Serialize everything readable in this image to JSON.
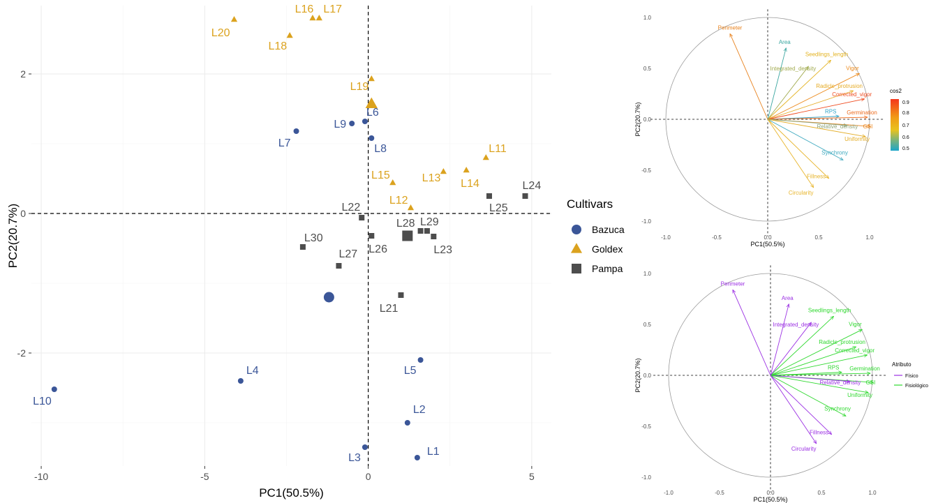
{
  "chart_data": [
    {
      "type": "scatter",
      "title": "",
      "xlabel": "PC1(50.5%)",
      "ylabel": "PC2(20.7%)",
      "xlim": [
        -10.3,
        5.6
      ],
      "ylim": [
        -3.62,
        2.98
      ],
      "xticks": [
        -10,
        -5,
        0,
        5
      ],
      "yticks": [
        -2,
        0,
        2
      ],
      "grid": true,
      "legend": {
        "title": "Cultivars",
        "position": "right"
      },
      "series": [
        {
          "name": "Bazuca",
          "shape": "circle",
          "color": "#3b5698",
          "points": [
            {
              "label": "L1",
              "x": 1.5,
              "y": -3.5
            },
            {
              "label": "L2",
              "x": 1.2,
              "y": -3.0
            },
            {
              "label": "L3",
              "x": -0.1,
              "y": -3.35
            },
            {
              "label": "L4",
              "x": -3.9,
              "y": -2.4
            },
            {
              "label": "L5",
              "x": 1.6,
              "y": -2.1
            },
            {
              "label": "L6",
              "x": -0.1,
              "y": 1.32
            },
            {
              "label": "L7",
              "x": -2.2,
              "y": 1.18
            },
            {
              "label": "L8",
              "x": 0.1,
              "y": 1.08
            },
            {
              "label": "L9",
              "x": -0.5,
              "y": 1.29
            },
            {
              "label": "L10",
              "x": -9.6,
              "y": -2.52
            }
          ],
          "centroid": {
            "x": -1.2,
            "y": -1.2
          }
        },
        {
          "name": "Goldex",
          "shape": "triangle",
          "color": "#dba21e",
          "points": [
            {
              "label": "L11",
              "x": 3.6,
              "y": 0.8
            },
            {
              "label": "L12",
              "x": 1.3,
              "y": 0.08
            },
            {
              "label": "L13",
              "x": 2.3,
              "y": 0.6
            },
            {
              "label": "L14",
              "x": 3.0,
              "y": 0.62
            },
            {
              "label": "L15",
              "x": 0.75,
              "y": 0.44
            },
            {
              "label": "L16",
              "x": -1.7,
              "y": 2.8
            },
            {
              "label": "L17",
              "x": -1.5,
              "y": 2.8
            },
            {
              "label": "L18",
              "x": -2.4,
              "y": 2.55
            },
            {
              "label": "L19",
              "x": 0.1,
              "y": 1.93
            },
            {
              "label": "L20",
              "x": -4.1,
              "y": 2.78
            }
          ],
          "centroid": {
            "x": 0.1,
            "y": 1.57
          }
        },
        {
          "name": "Pampa",
          "shape": "square",
          "color": "#4d4d4d",
          "points": [
            {
              "label": "L21",
              "x": 1.0,
              "y": -1.17
            },
            {
              "label": "L22",
              "x": -0.2,
              "y": -0.06
            },
            {
              "label": "L23",
              "x": 2.0,
              "y": -0.33
            },
            {
              "label": "L24",
              "x": 4.8,
              "y": 0.25
            },
            {
              "label": "L25",
              "x": 3.7,
              "y": 0.25
            },
            {
              "label": "L26",
              "x": 0.1,
              "y": -0.32
            },
            {
              "label": "L27",
              "x": -0.9,
              "y": -0.75
            },
            {
              "label": "L28",
              "x": 1.6,
              "y": -0.25
            },
            {
              "label": "L29",
              "x": 1.8,
              "y": -0.25
            },
            {
              "label": "L30",
              "x": -2.0,
              "y": -0.48
            }
          ],
          "centroid": {
            "x": 1.2,
            "y": -0.32
          }
        }
      ]
    },
    {
      "type": "scatter",
      "title": "",
      "xlabel": "PC1(50.5%)",
      "ylabel": "PC2(20.7%)",
      "xlim": [
        -1.0,
        1.0
      ],
      "ylim": [
        -1.0,
        1.0
      ],
      "xticks": [
        "-1.0",
        "-0.5",
        "0.0",
        "0.5",
        "1.0"
      ],
      "yticks": [
        "1.0",
        "0.5",
        "0.0",
        "-0.5",
        "-1.0"
      ],
      "color_by": "cos2",
      "legend": {
        "title": "cos2",
        "position": "right",
        "ticks": [
          "0.9",
          "0.8",
          "0.7",
          "0.6",
          "0.5"
        ]
      },
      "vectors": [
        {
          "name": "Perimeter",
          "x": -0.37,
          "y": 0.84,
          "color": "#e8821e"
        },
        {
          "name": "Area",
          "x": 0.18,
          "y": 0.7,
          "color": "#3aa6a0"
        },
        {
          "name": "Seedlings_length",
          "x": 0.62,
          "y": 0.58,
          "color": "#e3b220"
        },
        {
          "name": "Integrated_density",
          "x": 0.4,
          "y": 0.52,
          "color": "#a2ab50"
        },
        {
          "name": "Vigor",
          "x": 0.9,
          "y": 0.45,
          "color": "#ec8a1c"
        },
        {
          "name": "Radicle_protrusion",
          "x": 0.84,
          "y": 0.28,
          "color": "#e5aa22"
        },
        {
          "name": "Corrected_vigor",
          "x": 0.95,
          "y": 0.2,
          "color": "#ef4a1e"
        },
        {
          "name": "RPS",
          "x": 0.7,
          "y": 0.03,
          "color": "#2fa4c9"
        },
        {
          "name": "Germination",
          "x": 0.98,
          "y": 0.02,
          "color": "#ec6a1c"
        },
        {
          "name": "GSI",
          "x": 1.01,
          "y": -0.07,
          "color": "#e9841c"
        },
        {
          "name": "Relative_density",
          "x": 0.78,
          "y": -0.06,
          "color": "#8fa57a"
        },
        {
          "name": "Uniformity",
          "x": 0.96,
          "y": -0.17,
          "color": "#e3ac25"
        },
        {
          "name": "Synchrony",
          "x": 0.74,
          "y": -0.4,
          "color": "#3ea9bf"
        },
        {
          "name": "Fillness",
          "x": 0.6,
          "y": -0.58,
          "color": "#e6b328"
        },
        {
          "name": "Circularity",
          "x": 0.45,
          "y": -0.67,
          "color": "#e8b52c"
        }
      ]
    },
    {
      "type": "scatter",
      "title": "",
      "xlabel": "PC1(50.5%)",
      "ylabel": "PC2(20.7%)",
      "xlim": [
        -1.0,
        1.0
      ],
      "ylim": [
        -1.0,
        1.0
      ],
      "xticks": [
        "-1.0",
        "-0.5",
        "0.0",
        "0.5",
        "1.0"
      ],
      "yticks": [
        "1.0",
        "0.5",
        "0.0",
        "-0.5",
        "-1.0"
      ],
      "color_by": "Atributo",
      "legend": {
        "title": "Atributo",
        "position": "right",
        "entries": [
          {
            "label": "Físico",
            "color": "#9b30e3"
          },
          {
            "label": "Fisiológico",
            "color": "#2ed82e"
          }
        ]
      },
      "vectors": [
        {
          "name": "Perimeter",
          "x": -0.37,
          "y": 0.84,
          "group": "Físico"
        },
        {
          "name": "Area",
          "x": 0.18,
          "y": 0.7,
          "group": "Físico"
        },
        {
          "name": "Seedlings_length",
          "x": 0.62,
          "y": 0.58,
          "group": "Fisiológico"
        },
        {
          "name": "Integrated_density",
          "x": 0.4,
          "y": 0.52,
          "group": "Físico"
        },
        {
          "name": "Vigor",
          "x": 0.9,
          "y": 0.45,
          "group": "Fisiológico"
        },
        {
          "name": "Radicle_protrusion",
          "x": 0.84,
          "y": 0.28,
          "group": "Fisiológico"
        },
        {
          "name": "Corrected_vigor",
          "x": 0.95,
          "y": 0.2,
          "group": "Fisiológico"
        },
        {
          "name": "RPS",
          "x": 0.7,
          "y": 0.03,
          "group": "Fisiológico"
        },
        {
          "name": "Germination",
          "x": 0.98,
          "y": 0.02,
          "group": "Fisiológico"
        },
        {
          "name": "GSI",
          "x": 1.01,
          "y": -0.07,
          "group": "Fisiológico"
        },
        {
          "name": "Relative_density",
          "x": 0.78,
          "y": -0.06,
          "group": "Físico"
        },
        {
          "name": "Uniformity",
          "x": 0.96,
          "y": -0.17,
          "group": "Fisiológico"
        },
        {
          "name": "Synchrony",
          "x": 0.74,
          "y": -0.4,
          "group": "Fisiológico"
        },
        {
          "name": "Fillness",
          "x": 0.6,
          "y": -0.58,
          "group": "Físico"
        },
        {
          "name": "Circularity",
          "x": 0.45,
          "y": -0.67,
          "group": "Físico"
        }
      ]
    }
  ]
}
